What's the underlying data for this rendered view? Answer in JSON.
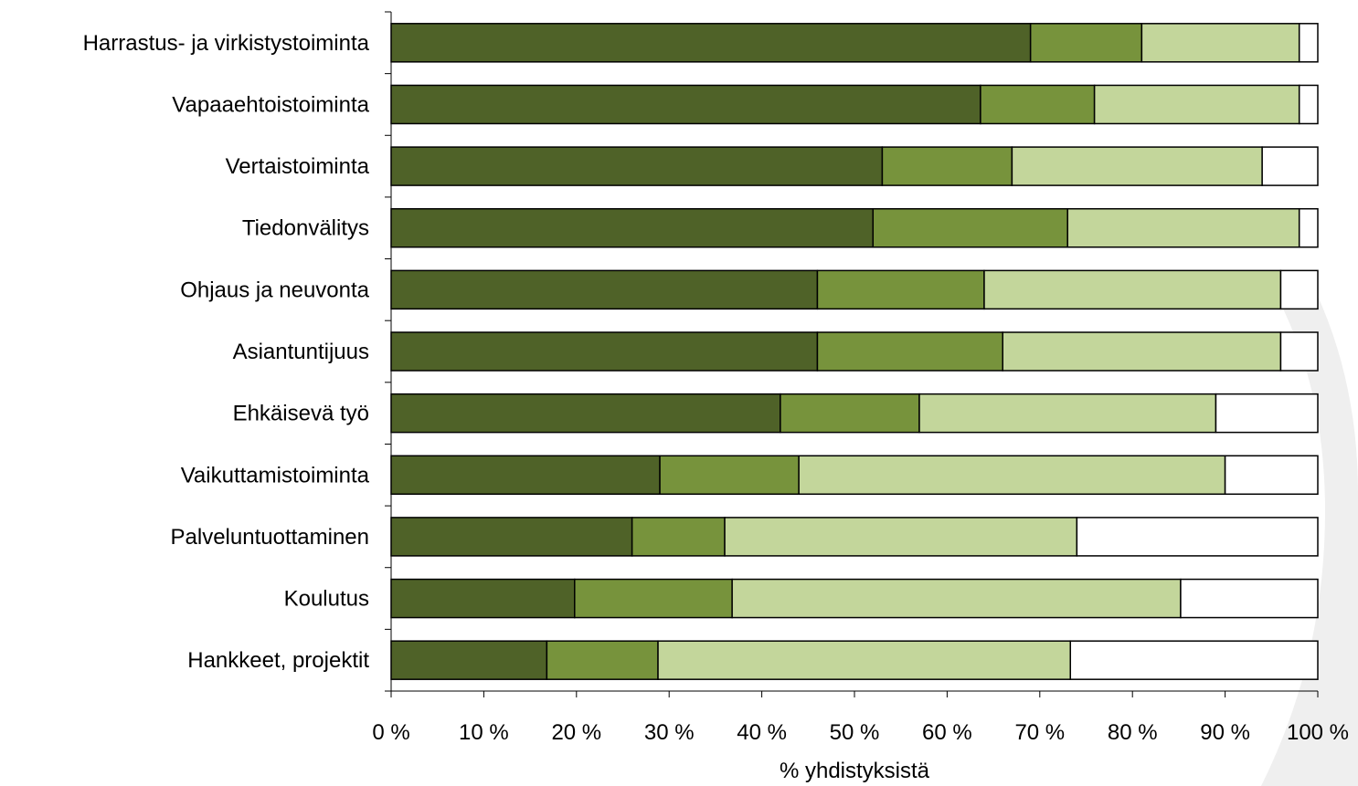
{
  "chart_data": {
    "type": "bar",
    "orientation": "horizontal",
    "stacked": true,
    "normalized_percent": true,
    "xlabel": "% yhdistyksistä",
    "ylabel": "",
    "xlim": [
      0,
      100
    ],
    "x_ticks": [
      0,
      10,
      20,
      30,
      40,
      50,
      60,
      70,
      80,
      90,
      100
    ],
    "x_tick_labels": [
      "0 %",
      "10 %",
      "20 %",
      "30 %",
      "40 %",
      "50 %",
      "60 %",
      "70 %",
      "80 %",
      "90 %",
      "100 %"
    ],
    "grid": false,
    "legend": "none",
    "categories": [
      "Harrastus- ja virkistystoiminta",
      "Vapaaehtoistoiminta",
      "Vertaistoiminta",
      "Tiedonvälitys",
      "Ohjaus ja neuvonta",
      "Asiantuntijuus",
      "Ehkäisevä työ",
      "Vaikuttamistoiminta",
      "Palveluntuottaminen",
      "Koulutus",
      "Hankkeet, projektit"
    ],
    "series": [
      {
        "color": "#4f6228",
        "values": [
          69,
          63.6,
          53,
          52,
          46,
          46,
          42,
          29,
          26,
          19.8,
          16.8
        ]
      },
      {
        "color": "#77933c",
        "values": [
          12,
          12.3,
          14,
          21,
          18,
          20,
          15,
          15,
          10,
          17,
          12
        ]
      },
      {
        "color": "#c3d69b",
        "values": [
          17,
          22.1,
          27,
          25,
          32,
          30,
          32,
          46,
          38,
          48.4,
          44.5
        ]
      },
      {
        "color": "#ffffff",
        "values": [
          2,
          2,
          6,
          2,
          4,
          4,
          11,
          10,
          26,
          14.8,
          26.7
        ]
      }
    ]
  }
}
